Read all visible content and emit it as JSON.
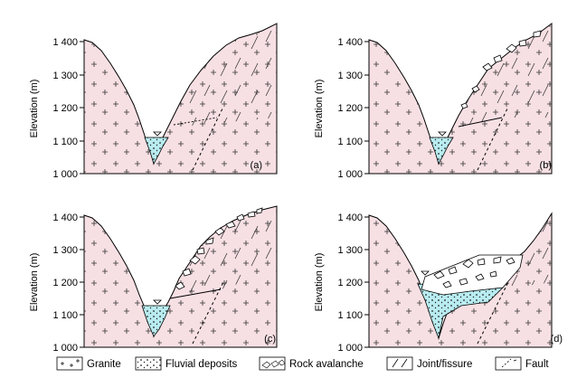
{
  "figure": {
    "y_axis_title": "Elevation (m)",
    "y_ticks": [
      "1 400",
      "1 300",
      "1 200",
      "1 100",
      "1 000"
    ],
    "panels": [
      {
        "tag": "(a)"
      },
      {
        "tag": "(b)"
      },
      {
        "tag": "(c)"
      },
      {
        "tag": "(d)"
      }
    ]
  },
  "legend": {
    "granite": "Granite",
    "fluvial": "Fluvial deposits",
    "avalanche": "Rock avalanche",
    "joint": "Joint/fissure",
    "fault": "Fault"
  },
  "colors": {
    "rock": "#f7e0e4",
    "water": "#b8ecf0",
    "outline": "#000000"
  }
}
